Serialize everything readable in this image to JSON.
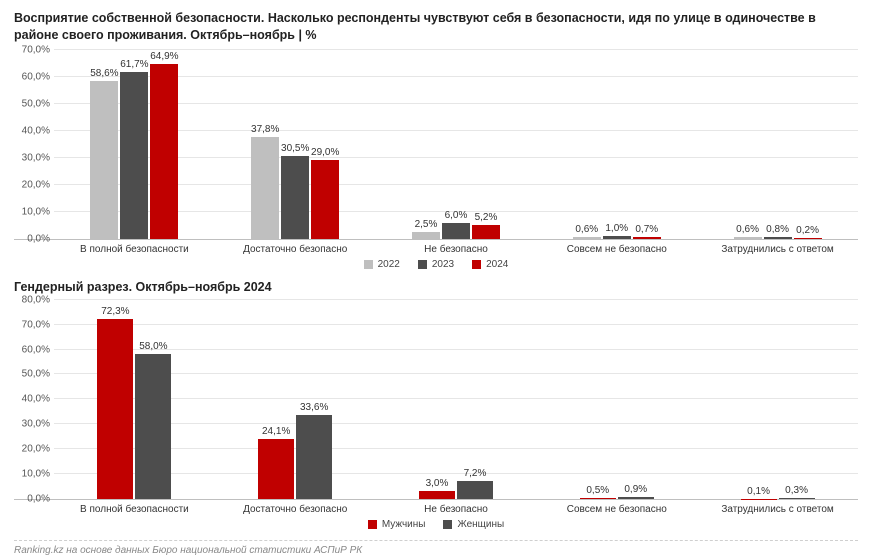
{
  "title": "Восприятие собственной безопасности. Насколько респонденты чувствуют себя в безопасности, идя по улице в одиночестве в районе своего проживания. Октябрь–ноябрь | %",
  "chart1": {
    "type": "bar",
    "ymax": 70,
    "ystep": 10,
    "categories": [
      "В полной безопасности",
      "Достаточно безопасно",
      "Не безопасно",
      "Совсем не безопасно",
      "Затруднились с ответом"
    ],
    "series": [
      {
        "name": "2022",
        "color": "#bfbfbf",
        "values": [
          58.6,
          37.8,
          2.5,
          0.6,
          0.6
        ]
      },
      {
        "name": "2023",
        "color": "#4d4d4d",
        "values": [
          61.7,
          30.5,
          6.0,
          1.0,
          0.8
        ]
      },
      {
        "name": "2024",
        "color": "#c00000",
        "values": [
          64.9,
          29.0,
          5.2,
          0.7,
          0.2
        ]
      }
    ],
    "labels": [
      [
        "58,6%",
        "61,7%",
        "64,9%"
      ],
      [
        "37,8%",
        "30,5%",
        "29,0%"
      ],
      [
        "2,5%",
        "6,0%",
        "5,2%"
      ],
      [
        "0,6%",
        "1,0%",
        "0,7%"
      ],
      [
        "0,6%",
        "0,8%",
        "0,2%"
      ]
    ],
    "yticks": [
      "0,0%",
      "10,0%",
      "20,0%",
      "30,0%",
      "40,0%",
      "50,0%",
      "60,0%",
      "70,0%"
    ]
  },
  "subtitle": "Гендерный разрез. Октябрь–ноябрь 2024",
  "chart2": {
    "type": "bar",
    "ymax": 80,
    "ystep": 10,
    "categories": [
      "В полной безопасности",
      "Достаточно безопасно",
      "Не безопасно",
      "Совсем не безопасно",
      "Затруднились с ответом"
    ],
    "series": [
      {
        "name": "Мужчины",
        "color": "#c00000",
        "values": [
          72.3,
          24.1,
          3.0,
          0.5,
          0.1
        ]
      },
      {
        "name": "Женщины",
        "color": "#4d4d4d",
        "values": [
          58.0,
          33.6,
          7.2,
          0.9,
          0.3
        ]
      }
    ],
    "labels": [
      [
        "72,3%",
        "58,0%"
      ],
      [
        "24,1%",
        "33,6%"
      ],
      [
        "3,0%",
        "7,2%"
      ],
      [
        "0,5%",
        "0,9%"
      ],
      [
        "0,1%",
        "0,3%"
      ]
    ],
    "yticks": [
      "0,0%",
      "10,0%",
      "20,0%",
      "30,0%",
      "40,0%",
      "50,0%",
      "60,0%",
      "70,0%",
      "80,0%"
    ]
  },
  "footer": "Ranking.kz на основе данных Бюро национальной статистики АСПиР РК",
  "style": {
    "grid_color": "#e6e6e6",
    "axis_color": "#bfbfbf",
    "background": "#ffffff",
    "label_fontsize": 10,
    "title_fontsize": 12.5
  }
}
